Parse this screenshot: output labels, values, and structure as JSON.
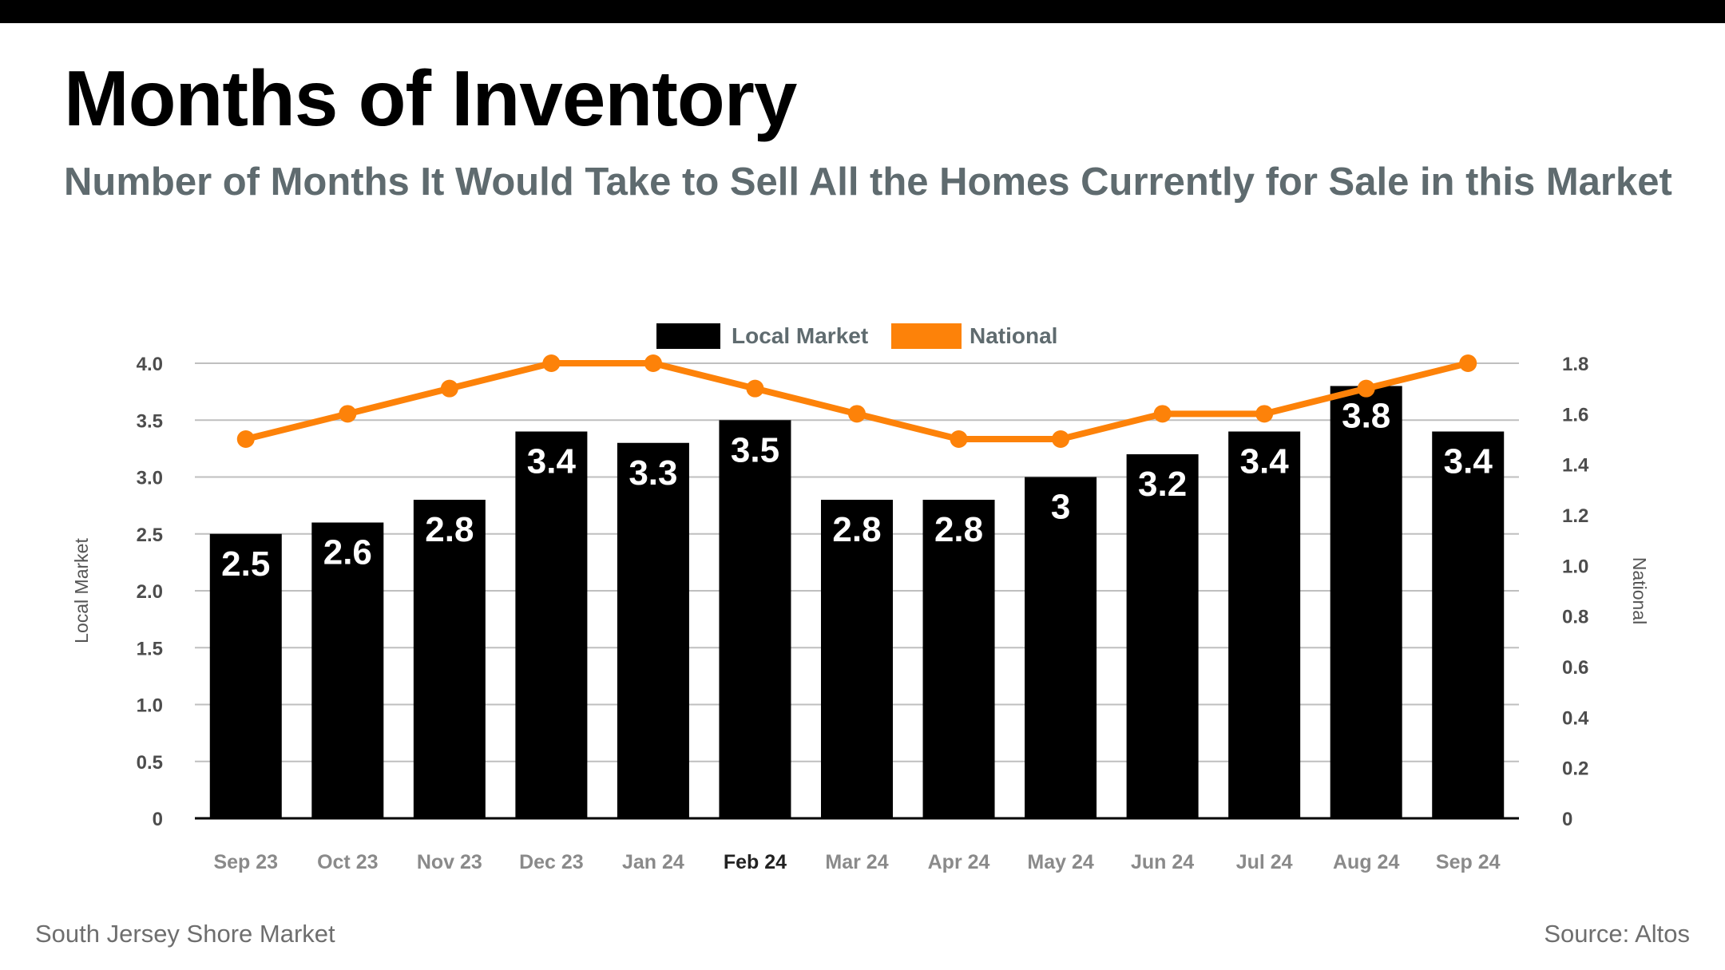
{
  "page": {
    "title": "Months of Inventory",
    "subtitle": "Number of Months It Would Take to Sell All the Homes Currently for Sale in this Market",
    "footer_left": "South Jersey Shore Market",
    "footer_right": "Source: Altos"
  },
  "colors": {
    "bar": "#000000",
    "line": "#fd8209",
    "grid": "#bfbfbf",
    "tick_text": "#4d4d4d",
    "category_text": "#8a8a8a",
    "category_highlight": "#222222",
    "legend_text": "#5f6b6f"
  },
  "chart_data": {
    "type": "bar",
    "categories": [
      "Sep 23",
      "Oct 23",
      "Nov 23",
      "Dec 23",
      "Jan 24",
      "Feb 24",
      "Mar 24",
      "Apr 24",
      "May 24",
      "Jun 24",
      "Jul 24",
      "Aug 24",
      "Sep 24"
    ],
    "highlight_category": "Feb 24",
    "series": [
      {
        "name": "Local Market",
        "type": "bar",
        "axis": "left",
        "values": [
          2.5,
          2.6,
          2.8,
          3.4,
          3.3,
          3.5,
          2.8,
          2.8,
          3,
          3.2,
          3.4,
          3.8,
          3.4
        ],
        "labels": [
          "2.5",
          "2.6",
          "2.8",
          "3.4",
          "3.3",
          "3.5",
          "2.8",
          "2.8",
          "3",
          "3.2",
          "3.4",
          "3.8",
          "3.4"
        ]
      },
      {
        "name": "National",
        "type": "line",
        "axis": "right",
        "values": [
          1.5,
          1.6,
          1.7,
          1.8,
          1.8,
          1.7,
          1.6,
          1.5,
          1.5,
          1.6,
          1.6,
          1.7,
          1.8
        ]
      }
    ],
    "y_left": {
      "label": "Local Market",
      "range": [
        0,
        4
      ],
      "ticks": [
        0,
        0.5,
        1,
        1.5,
        2,
        2.5,
        3,
        3.5,
        4
      ],
      "tick_labels": [
        "0",
        "0.5",
        "1.0",
        "1.5",
        "2.0",
        "2.5",
        "3.0",
        "3.5",
        "4.0"
      ]
    },
    "y_right": {
      "label": "National",
      "range": [
        0,
        1.8
      ],
      "ticks": [
        0,
        0.2,
        0.4,
        0.6,
        0.8,
        1,
        1.2,
        1.4,
        1.6,
        1.8
      ],
      "tick_labels": [
        "0",
        "0.2",
        "0.4",
        "0.6",
        "0.8",
        "1.0",
        "1.2",
        "1.4",
        "1.6",
        "1.8"
      ]
    },
    "legend": {
      "position": "top-center",
      "entries": [
        {
          "label": "Local Market",
          "color": "#000000"
        },
        {
          "label": "National",
          "color": "#fd8209"
        }
      ]
    },
    "grid": true
  }
}
